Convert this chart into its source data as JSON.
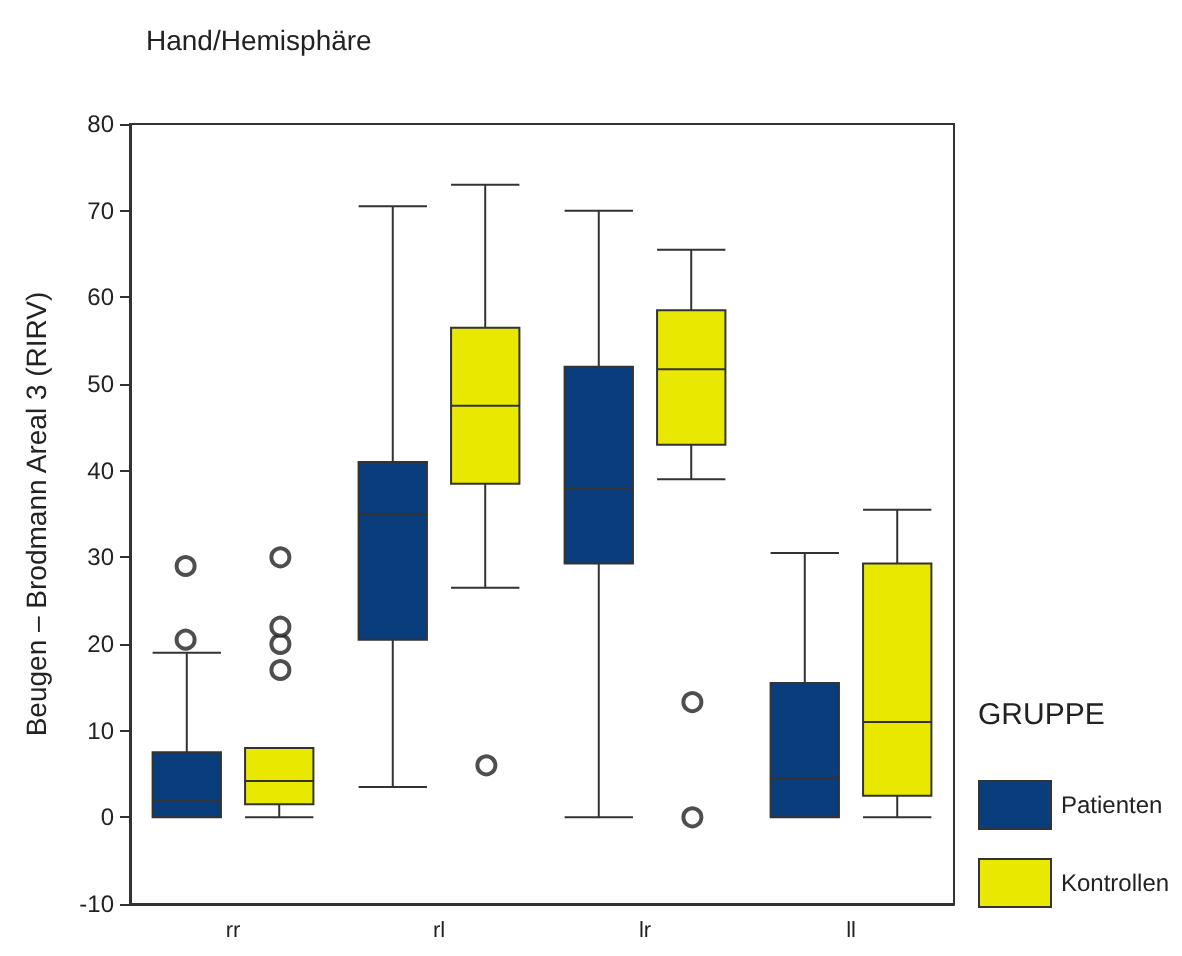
{
  "chart_data": {
    "type": "box",
    "title": "Hand/Hemisphäre",
    "ylabel": "Beugen – Brodmann Areal 3 (RIRV)",
    "legend_title": "GRUPPE",
    "categories": [
      "rr",
      "rl",
      "lr",
      "ll"
    ],
    "series": [
      {
        "name": "Patienten",
        "color": "#0a3d7c",
        "boxes": [
          {
            "low": 0,
            "q1": 0,
            "median": 2,
            "q3": 7.5,
            "high": 19,
            "outliers": [
              20.5,
              29
            ]
          },
          {
            "low": 3.5,
            "q1": 20.5,
            "median": 35,
            "q3": 41,
            "high": 70.5
          },
          {
            "low": 0,
            "q1": 29.3,
            "median": 38,
            "q3": 52,
            "high": 70
          },
          {
            "low": 0,
            "q1": 0,
            "median": 4.5,
            "q3": 15.5,
            "high": 30.5
          }
        ]
      },
      {
        "name": "Kontrollen",
        "color": "#e8e800",
        "boxes": [
          {
            "low": 0,
            "q1": 1.5,
            "median": 4.2,
            "q3": 8,
            "high": 8,
            "outliers": [
              17,
              20,
              22,
              30
            ]
          },
          {
            "low": 26.5,
            "q1": 38.5,
            "median": 47.5,
            "q3": 56.5,
            "high": 73,
            "outliers": [
              6
            ]
          },
          {
            "low": 39,
            "q1": 43,
            "median": 51.7,
            "q3": 58.5,
            "high": 65.5,
            "outliers": [
              13.3,
              0
            ]
          },
          {
            "low": 0,
            "q1": 2.5,
            "median": 11,
            "q3": 29.3,
            "high": 35.5
          }
        ]
      }
    ],
    "ylim": [
      -10,
      80
    ],
    "yticks": [
      -10,
      0,
      10,
      20,
      30,
      40,
      50,
      60,
      70,
      80
    ],
    "grid": false,
    "legend": "right"
  }
}
